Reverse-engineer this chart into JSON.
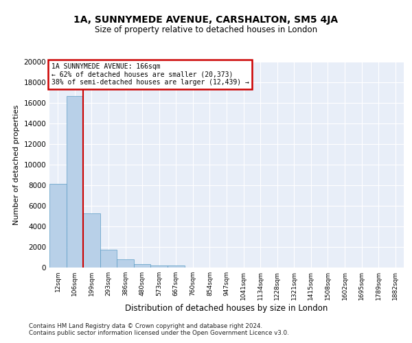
{
  "title": "1A, SUNNYMEDE AVENUE, CARSHALTON, SM5 4JA",
  "subtitle": "Size of property relative to detached houses in London",
  "xlabel": "Distribution of detached houses by size in London",
  "ylabel": "Number of detached properties",
  "categories": [
    "12sqm",
    "106sqm",
    "199sqm",
    "293sqm",
    "386sqm",
    "480sqm",
    "573sqm",
    "667sqm",
    "760sqm",
    "854sqm",
    "947sqm",
    "1041sqm",
    "1134sqm",
    "1228sqm",
    "1321sqm",
    "1415sqm",
    "1508sqm",
    "1602sqm",
    "1695sqm",
    "1789sqm",
    "1882sqm"
  ],
  "values": [
    8150,
    16650,
    5300,
    1750,
    780,
    330,
    220,
    210,
    0,
    0,
    0,
    0,
    0,
    0,
    0,
    0,
    0,
    0,
    0,
    0,
    0
  ],
  "bar_color": "#b8d0e8",
  "bar_edge_color": "#5a9cc5",
  "vline_color": "#cc0000",
  "annotation_text": "1A SUNNYMEDE AVENUE: 166sqm\n← 62% of detached houses are smaller (20,373)\n38% of semi-detached houses are larger (12,439) →",
  "annotation_box_color": "#cc0000",
  "ylim": [
    0,
    20000
  ],
  "yticks": [
    0,
    2000,
    4000,
    6000,
    8000,
    10000,
    12000,
    14000,
    16000,
    18000,
    20000
  ],
  "background_color": "#e8eef8",
  "grid_color": "#ffffff",
  "footer_line1": "Contains HM Land Registry data © Crown copyright and database right 2024.",
  "footer_line2": "Contains public sector information licensed under the Open Government Licence v3.0."
}
